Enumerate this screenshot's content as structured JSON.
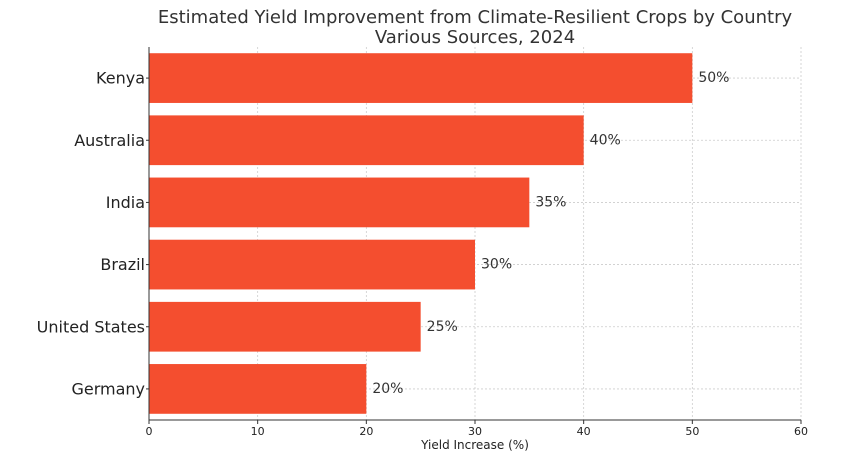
{
  "chart_data": {
    "type": "bar",
    "orientation": "horizontal",
    "title": "Estimated Yield Improvement from Climate-Resilient Crops by Country",
    "subtitle": "Various Sources, 2024",
    "categories": [
      "Kenya",
      "Australia",
      "India",
      "Brazil",
      "United States",
      "Germany"
    ],
    "values": [
      50,
      40,
      35,
      30,
      25,
      20
    ],
    "value_labels": [
      "50%",
      "40%",
      "35%",
      "30%",
      "25%",
      "20%"
    ],
    "xlabel": "Yield Increase (%)",
    "ylabel": "",
    "xlim": [
      0,
      60
    ],
    "xticks": [
      0,
      10,
      20,
      30,
      40,
      50,
      60
    ],
    "xtick_labels": [
      "0",
      "10",
      "20",
      "30",
      "40",
      "50",
      "60"
    ],
    "grid": true,
    "bar_color": "#f44e2f"
  }
}
